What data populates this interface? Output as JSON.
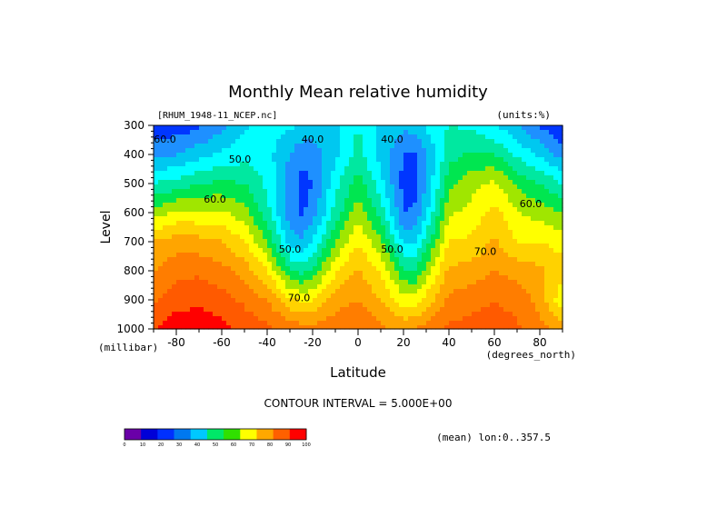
{
  "chart_data": {
    "type": "contour",
    "title": "Monthly Mean relative humidity",
    "source_label": "[RHUM_1948-11_NCEP.nc]",
    "units_label": "(units:%)",
    "xlabel": "Latitude",
    "ylabel": "Level",
    "x_units": "(degrees_north)",
    "y_units": "(millibar)",
    "xlim": [
      -90,
      90
    ],
    "ylim": [
      1000,
      300
    ],
    "x_ticks": [
      -80,
      -60,
      -40,
      -20,
      0,
      20,
      40,
      60,
      80
    ],
    "y_ticks": [
      300,
      400,
      500,
      600,
      700,
      800,
      900,
      1000
    ],
    "contour_interval": "CONTOUR INTERVAL = 5.000E+00",
    "mean_note": "(mean) lon:0..357.5",
    "contour_labels": [
      "40.0",
      "40.0",
      "50.0",
      "50.0",
      "50.0",
      "60.0",
      "60.0",
      "60.0",
      "70.0",
      "70.0"
    ],
    "colorbar": {
      "levels": [
        0,
        10,
        20,
        30,
        40,
        50,
        60,
        70,
        80,
        90,
        100
      ],
      "colors": [
        "#6a00a8",
        "#0000d8",
        "#0030ff",
        "#0078f0",
        "#00c8ff",
        "#00e868",
        "#30e000",
        "#ffff00",
        "#ffa800",
        "#ff6000",
        "#ff0000"
      ],
      "shading": {
        "25-30": "#0000c8",
        "30-35": "#0036ff",
        "35-40": "#1e90ff",
        "40-45": "#00c8f0",
        "45-50": "#00ffff",
        "50-55": "#00e8a0",
        "55-60": "#00e650",
        "60-65": "#a0e600",
        "65-70": "#ffff00",
        "70-75": "#ffd200",
        "75-80": "#ffa500",
        "80-85": "#ff7d00",
        "85-90": "#ff5a00",
        "90-95": "#ff0000"
      }
    },
    "profiles": {
      "latitude": [
        -90,
        -80,
        -70,
        -60,
        -50,
        -40,
        -30,
        -25,
        -20,
        -10,
        0,
        10,
        20,
        25,
        30,
        40,
        50,
        60,
        70,
        80,
        90
      ],
      "levels_mb": [
        300,
        400,
        500,
        600,
        700,
        800,
        900,
        1000
      ],
      "rhum": [
        [
          32,
          38,
          50,
          62,
          75,
          80,
          84,
          90
        ],
        [
          32,
          40,
          52,
          66,
          78,
          83,
          88,
          93
        ],
        [
          34,
          43,
          55,
          66,
          77,
          84,
          89,
          93
        ],
        [
          38,
          46,
          56,
          66,
          75,
          82,
          87,
          92
        ],
        [
          44,
          48,
          55,
          62,
          70,
          78,
          84,
          88
        ],
        [
          47,
          47,
          49,
          52,
          60,
          70,
          80,
          86
        ],
        [
          46,
          40,
          37,
          37,
          43,
          55,
          71,
          84
        ],
        [
          45,
          36,
          34,
          34,
          41,
          53,
          69,
          82
        ],
        [
          44,
          36,
          35,
          37,
          45,
          56,
          70,
          82
        ],
        [
          44,
          44,
          48,
          52,
          60,
          69,
          78,
          83
        ],
        [
          50,
          52,
          58,
          63,
          70,
          76,
          80,
          85
        ],
        [
          44,
          43,
          47,
          53,
          61,
          69,
          75,
          81
        ],
        [
          41,
          35,
          33,
          35,
          44,
          56,
          67,
          79
        ],
        [
          42,
          35,
          33,
          36,
          44,
          55,
          67,
          80
        ],
        [
          46,
          40,
          40,
          44,
          52,
          62,
          72,
          82
        ],
        [
          50,
          53,
          58,
          64,
          70,
          76,
          81,
          86
        ],
        [
          49,
          56,
          63,
          67,
          71,
          77,
          83,
          87
        ],
        [
          45,
          55,
          66,
          72,
          76,
          80,
          85,
          88
        ],
        [
          41,
          49,
          59,
          65,
          70,
          78,
          83,
          86
        ],
        [
          34,
          44,
          55,
          63,
          70,
          76,
          78,
          82
        ],
        [
          30,
          38,
          50,
          60,
          68,
          72,
          66,
          78
        ]
      ]
    }
  }
}
